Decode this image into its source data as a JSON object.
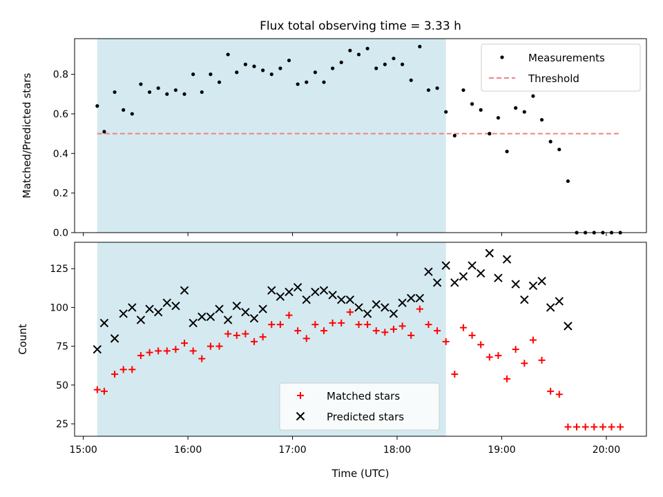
{
  "chart_data": [
    {
      "type": "scatter",
      "title": "Flux total observing time = 3.33 h",
      "xlabel": "",
      "ylabel": "Matched/Predicted stars",
      "ylim": [
        0,
        0.98
      ],
      "yticks": [
        "0.0",
        "0.2",
        "0.4",
        "0.6",
        "0.8"
      ],
      "xlim": [
        "14:55",
        "20:23"
      ],
      "shaded_region": [
        "15:08",
        "18:28"
      ],
      "legend_position": "top-right",
      "series": [
        {
          "name": "Measurements",
          "marker": "dot",
          "color": "#000000",
          "points": [
            [
              "15:08",
              0.64
            ],
            [
              "15:12",
              0.51
            ],
            [
              "15:18",
              0.71
            ],
            [
              "15:23",
              0.62
            ],
            [
              "15:28",
              0.6
            ],
            [
              "15:33",
              0.75
            ],
            [
              "15:38",
              0.71
            ],
            [
              "15:43",
              0.73
            ],
            [
              "15:48",
              0.7
            ],
            [
              "15:53",
              0.72
            ],
            [
              "15:58",
              0.7
            ],
            [
              "16:03",
              0.8
            ],
            [
              "16:08",
              0.71
            ],
            [
              "16:13",
              0.8
            ],
            [
              "16:18",
              0.76
            ],
            [
              "16:23",
              0.9
            ],
            [
              "16:28",
              0.81
            ],
            [
              "16:33",
              0.85
            ],
            [
              "16:38",
              0.84
            ],
            [
              "16:43",
              0.82
            ],
            [
              "16:48",
              0.8
            ],
            [
              "16:53",
              0.83
            ],
            [
              "16:58",
              0.87
            ],
            [
              "17:03",
              0.75
            ],
            [
              "17:08",
              0.76
            ],
            [
              "17:13",
              0.81
            ],
            [
              "17:18",
              0.76
            ],
            [
              "17:23",
              0.83
            ],
            [
              "17:28",
              0.86
            ],
            [
              "17:33",
              0.92
            ],
            [
              "17:38",
              0.9
            ],
            [
              "17:43",
              0.93
            ],
            [
              "17:48",
              0.83
            ],
            [
              "17:53",
              0.85
            ],
            [
              "17:58",
              0.88
            ],
            [
              "18:03",
              0.85
            ],
            [
              "18:08",
              0.77
            ],
            [
              "18:13",
              0.94
            ],
            [
              "18:18",
              0.72
            ],
            [
              "18:23",
              0.73
            ],
            [
              "18:28",
              0.61
            ],
            [
              "18:33",
              0.49
            ],
            [
              "18:38",
              0.72
            ],
            [
              "18:43",
              0.65
            ],
            [
              "18:48",
              0.62
            ],
            [
              "18:53",
              0.5
            ],
            [
              "18:58",
              0.58
            ],
            [
              "19:03",
              0.41
            ],
            [
              "19:08",
              0.63
            ],
            [
              "19:13",
              0.61
            ],
            [
              "19:18",
              0.69
            ],
            [
              "19:23",
              0.57
            ],
            [
              "19:28",
              0.46
            ],
            [
              "19:33",
              0.42
            ],
            [
              "19:38",
              0.26
            ],
            [
              "19:43",
              0.0
            ],
            [
              "19:48",
              0.0
            ],
            [
              "19:53",
              0.0
            ],
            [
              "19:58",
              0.0
            ],
            [
              "20:03",
              0.0
            ],
            [
              "20:08",
              0.0
            ]
          ]
        },
        {
          "name": "Threshold",
          "marker": "dashed-line",
          "color": "#f08080",
          "points": [
            [
              "15:08",
              0.5
            ],
            [
              "20:08",
              0.5
            ]
          ]
        }
      ]
    },
    {
      "type": "scatter",
      "title": "",
      "xlabel": "Time (UTC)",
      "ylabel": "Count",
      "ylim": [
        17,
        142
      ],
      "yticks": [
        "25",
        "50",
        "75",
        "100",
        "125"
      ],
      "xlim": [
        "14:55",
        "20:23"
      ],
      "xticks": [
        "15:00",
        "16:00",
        "17:00",
        "18:00",
        "19:00",
        "20:00"
      ],
      "shaded_region": [
        "15:08",
        "18:28"
      ],
      "legend_position": "lower-center",
      "series": [
        {
          "name": "Matched stars",
          "marker": "plus",
          "color": "#ff0000",
          "points": [
            [
              "15:08",
              47
            ],
            [
              "15:12",
              46
            ],
            [
              "15:18",
              57
            ],
            [
              "15:23",
              60
            ],
            [
              "15:28",
              60
            ],
            [
              "15:33",
              69
            ],
            [
              "15:38",
              71
            ],
            [
              "15:43",
              72
            ],
            [
              "15:48",
              72
            ],
            [
              "15:53",
              73
            ],
            [
              "15:58",
              77
            ],
            [
              "16:03",
              72
            ],
            [
              "16:08",
              67
            ],
            [
              "16:13",
              75
            ],
            [
              "16:18",
              75
            ],
            [
              "16:23",
              83
            ],
            [
              "16:28",
              82
            ],
            [
              "16:33",
              83
            ],
            [
              "16:38",
              78
            ],
            [
              "16:43",
              81
            ],
            [
              "16:48",
              89
            ],
            [
              "16:53",
              89
            ],
            [
              "16:58",
              95
            ],
            [
              "17:03",
              85
            ],
            [
              "17:08",
              80
            ],
            [
              "17:13",
              89
            ],
            [
              "17:18",
              85
            ],
            [
              "17:23",
              90
            ],
            [
              "17:28",
              90
            ],
            [
              "17:33",
              97
            ],
            [
              "17:38",
              89
            ],
            [
              "17:43",
              89
            ],
            [
              "17:48",
              85
            ],
            [
              "17:53",
              84
            ],
            [
              "17:58",
              86
            ],
            [
              "18:03",
              88
            ],
            [
              "18:08",
              82
            ],
            [
              "18:13",
              99
            ],
            [
              "18:18",
              89
            ],
            [
              "18:23",
              85
            ],
            [
              "18:28",
              78
            ],
            [
              "18:33",
              57
            ],
            [
              "18:38",
              87
            ],
            [
              "18:43",
              82
            ],
            [
              "18:48",
              76
            ],
            [
              "18:53",
              68
            ],
            [
              "18:58",
              69
            ],
            [
              "19:03",
              54
            ],
            [
              "19:08",
              73
            ],
            [
              "19:13",
              64
            ],
            [
              "19:18",
              79
            ],
            [
              "19:23",
              66
            ],
            [
              "19:28",
              46
            ],
            [
              "19:33",
              44
            ],
            [
              "19:38",
              23
            ],
            [
              "19:43",
              23
            ],
            [
              "19:48",
              23
            ],
            [
              "19:53",
              23
            ],
            [
              "19:58",
              23
            ],
            [
              "20:03",
              23
            ],
            [
              "20:08",
              23
            ]
          ]
        },
        {
          "name": "Predicted stars",
          "marker": "cross",
          "color": "#000000",
          "points": [
            [
              "15:08",
              73
            ],
            [
              "15:12",
              90
            ],
            [
              "15:18",
              80
            ],
            [
              "15:23",
              96
            ],
            [
              "15:28",
              100
            ],
            [
              "15:33",
              92
            ],
            [
              "15:38",
              99
            ],
            [
              "15:43",
              97
            ],
            [
              "15:48",
              103
            ],
            [
              "15:53",
              101
            ],
            [
              "15:58",
              111
            ],
            [
              "16:03",
              90
            ],
            [
              "16:08",
              94
            ],
            [
              "16:13",
              94
            ],
            [
              "16:18",
              99
            ],
            [
              "16:23",
              92
            ],
            [
              "16:28",
              101
            ],
            [
              "16:33",
              97
            ],
            [
              "16:38",
              93
            ],
            [
              "16:43",
              99
            ],
            [
              "16:48",
              111
            ],
            [
              "16:53",
              107
            ],
            [
              "16:58",
              110
            ],
            [
              "17:03",
              113
            ],
            [
              "17:08",
              105
            ],
            [
              "17:13",
              110
            ],
            [
              "17:18",
              111
            ],
            [
              "17:23",
              108
            ],
            [
              "17:28",
              105
            ],
            [
              "17:33",
              105
            ],
            [
              "17:38",
              100
            ],
            [
              "17:43",
              96
            ],
            [
              "17:48",
              102
            ],
            [
              "17:53",
              100
            ],
            [
              "17:58",
              96
            ],
            [
              "18:03",
              103
            ],
            [
              "18:08",
              106
            ],
            [
              "18:13",
              106
            ],
            [
              "18:18",
              123
            ],
            [
              "18:23",
              116
            ],
            [
              "18:28",
              127
            ],
            [
              "18:33",
              116
            ],
            [
              "18:38",
              120
            ],
            [
              "18:43",
              127
            ],
            [
              "18:48",
              122
            ],
            [
              "18:53",
              135
            ],
            [
              "18:58",
              119
            ],
            [
              "19:03",
              131
            ],
            [
              "19:08",
              115
            ],
            [
              "19:13",
              105
            ],
            [
              "19:18",
              114
            ],
            [
              "19:23",
              117
            ],
            [
              "19:28",
              100
            ],
            [
              "19:33",
              104
            ],
            [
              "19:38",
              88
            ]
          ]
        }
      ]
    }
  ],
  "style": {
    "shade_color": "#d4eaf0",
    "threshold_color": "#f08080"
  }
}
